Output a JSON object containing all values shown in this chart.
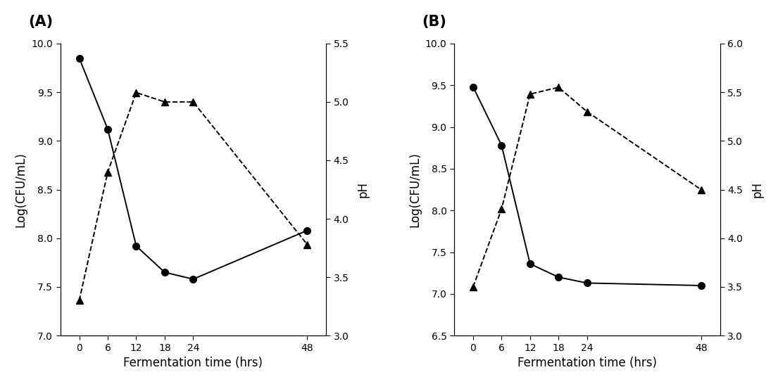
{
  "panel_A": {
    "label": "(A)",
    "x": [
      0,
      6,
      12,
      18,
      24,
      48
    ],
    "cfu": [
      9.85,
      9.12,
      7.92,
      7.65,
      7.58,
      8.08
    ],
    "ph": [
      3.3,
      4.4,
      5.08,
      5.0,
      5.0,
      3.78
    ],
    "cfu_ylim": [
      7.0,
      10.0
    ],
    "ph_ylim": [
      3.0,
      5.5
    ],
    "ph_yticks": [
      3.0,
      3.5,
      4.0,
      4.5,
      5.0,
      5.5
    ],
    "cfu_yticks": [
      7.0,
      7.5,
      8.0,
      8.5,
      9.0,
      9.5,
      10.0
    ]
  },
  "panel_B": {
    "label": "(B)",
    "x": [
      0,
      6,
      12,
      18,
      24,
      48
    ],
    "cfu": [
      9.48,
      8.78,
      7.36,
      7.2,
      7.13,
      7.1
    ],
    "ph": [
      3.5,
      4.3,
      5.48,
      5.55,
      5.3,
      4.5
    ],
    "cfu_ylim": [
      6.5,
      10.0
    ],
    "ph_ylim": [
      3.0,
      6.0
    ],
    "ph_yticks": [
      3.0,
      3.5,
      4.0,
      4.5,
      5.0,
      5.5,
      6.0
    ],
    "cfu_yticks": [
      6.5,
      7.0,
      7.5,
      8.0,
      8.5,
      9.0,
      9.5,
      10.0
    ]
  },
  "xlabel": "Fermentation time (hrs)",
  "ylabel_left": "Log(CFU/mL)",
  "ylabel_right": "pH",
  "xticks": [
    0,
    6,
    12,
    18,
    24,
    48
  ],
  "line_color": "black",
  "marker_circle": "o",
  "marker_triangle": "^",
  "markersize": 7,
  "linewidth": 1.4,
  "label_fontsize": 12,
  "tick_fontsize": 10,
  "panel_label_fontsize": 15,
  "background_color": "#ffffff"
}
